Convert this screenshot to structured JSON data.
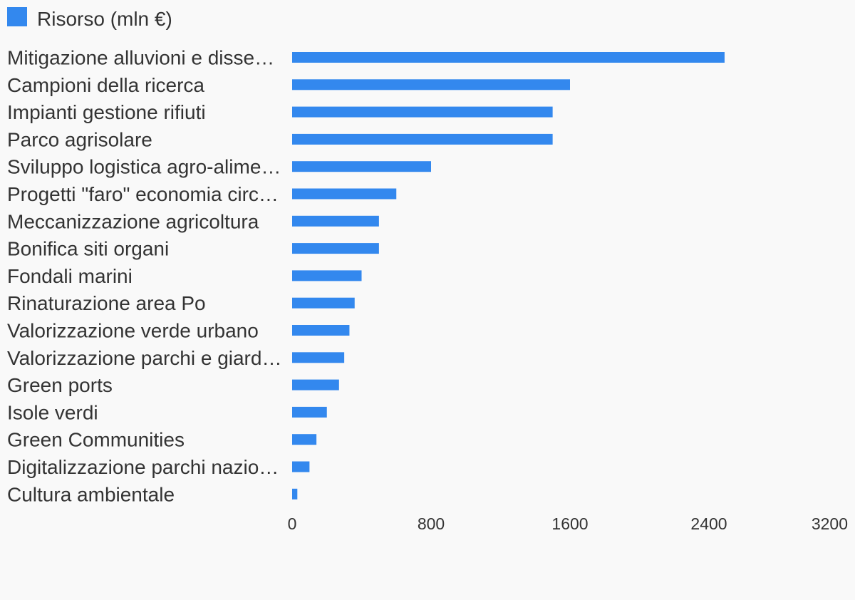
{
  "chart_data": {
    "type": "bar",
    "orientation": "horizontal",
    "series": [
      {
        "name": "Risorso (mln €)",
        "color": "#3388ee",
        "values": [
          2490,
          1600,
          1500,
          1500,
          800,
          600,
          500,
          500,
          400,
          360,
          330,
          300,
          270,
          200,
          140,
          100,
          30
        ]
      }
    ],
    "categories": [
      "Mitigazione alluvioni e disse…",
      "Campioni della ricerca",
      "Impianti gestione rifiuti",
      "Parco agrisolare",
      "Sviluppo logistica agro-alime…",
      "Progetti \"faro\" economia circ…",
      "Meccanizzazione agricoltura",
      "Bonifica siti organi",
      "Fondali marini",
      "Rinaturazione area Po",
      "Valorizzazione verde urbano",
      "Valorizzazione parchi e giard…",
      "Green ports",
      "Isole verdi",
      "Green Communities",
      "Digitalizzazione parchi nazio…",
      "Cultura ambientale"
    ],
    "xlim": [
      0,
      3200
    ],
    "x_ticks": [
      "0",
      "800",
      "1600",
      "2400",
      "3200"
    ],
    "legend_position": "top-left",
    "grid": false
  }
}
